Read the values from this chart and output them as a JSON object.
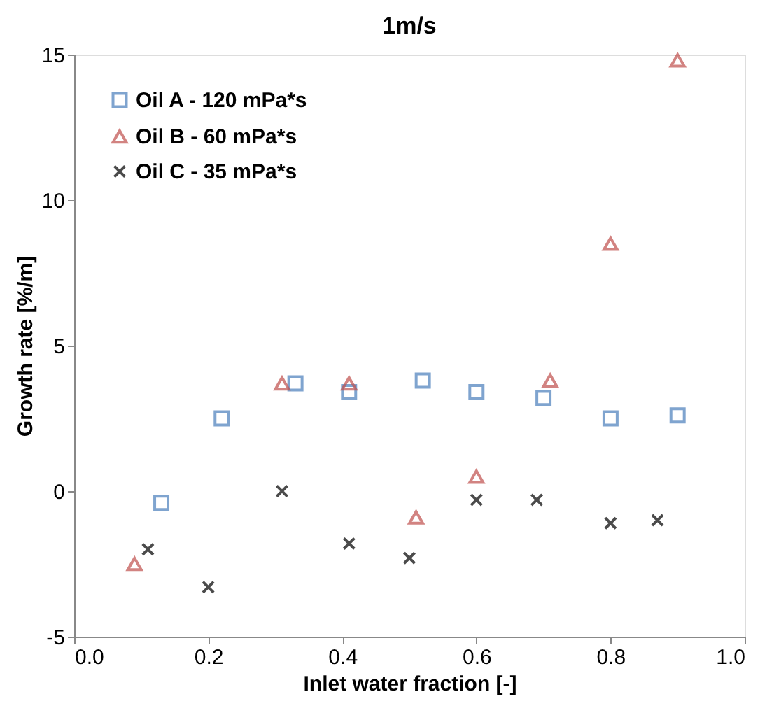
{
  "chart_data": {
    "type": "scatter",
    "title": "1m/s",
    "xlabel": "Inlet water fraction [-]",
    "ylabel": "Growth rate [%/m]",
    "xlim": [
      0,
      1
    ],
    "xticks": [
      {
        "value": 0,
        "label": "0.0"
      },
      {
        "value": 0.2,
        "label": "0.2"
      },
      {
        "value": 0.4,
        "label": "0.4"
      },
      {
        "value": 0.6,
        "label": "0.6"
      },
      {
        "value": 0.8,
        "label": "0.8"
      },
      {
        "value": 1,
        "label": "1.0"
      }
    ],
    "ylim": [
      -5,
      15
    ],
    "yticks": [
      -5,
      0,
      5,
      10,
      15
    ],
    "grid": false,
    "legend": "top left",
    "series": [
      {
        "name": "Oil A - 120 mPa*s",
        "color": "#4a7ebb",
        "marker": "square",
        "x": [
          0.13,
          0.22,
          0.33,
          0.41,
          0.52,
          0.6,
          0.7,
          0.8,
          0.9
        ],
        "values": [
          -0.4,
          2.5,
          3.7,
          3.4,
          3.8,
          3.4,
          3.2,
          2.5,
          2.6
        ]
      },
      {
        "name": "Oil B - 60 mPa*s",
        "color": "#c0504d",
        "marker": "triangle",
        "x": [
          0.09,
          0.31,
          0.41,
          0.51,
          0.6,
          0.71,
          0.8,
          0.9
        ],
        "values": [
          -2.5,
          3.7,
          3.7,
          -0.9,
          0.5,
          3.8,
          8.5,
          14.8
        ]
      },
      {
        "name": "Oil C - 35 mPa*s",
        "color": "#000000",
        "marker": "cross",
        "x": [
          0.11,
          0.2,
          0.31,
          0.41,
          0.5,
          0.6,
          0.69,
          0.8,
          0.87
        ],
        "values": [
          -2.0,
          -3.3,
          0.0,
          -1.8,
          -2.3,
          -0.3,
          -0.3,
          -1.1,
          -1.0
        ]
      }
    ]
  }
}
